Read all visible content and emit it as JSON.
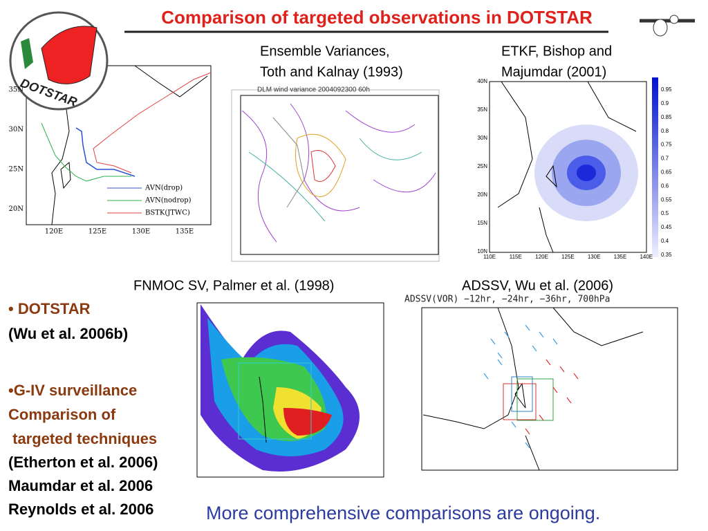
{
  "title": "Comparison of targeted observations in DOTSTAR",
  "logo": "DOTSTAR",
  "track_map": {
    "yticks": [
      "35N",
      "30N",
      "25N",
      "20N"
    ],
    "xticks": [
      "120E",
      "125E",
      "130E",
      "135E"
    ],
    "legend": [
      "AVN(drop)",
      "AVN(nodrop)",
      "BSTK(JTWC)"
    ]
  },
  "panels": [
    {
      "caption": [
        "Ensemble Variances,",
        "Toth and Kalnay (1993)"
      ],
      "plot_title": "DLM wind variance 2004092300 60h"
    },
    {
      "caption": [
        "ETKF, Bishop and",
        "Majumdar (2001)"
      ],
      "yticks": [
        "40N",
        "35N",
        "30N",
        "25N",
        "20N",
        "15N",
        "10N"
      ],
      "xticks": [
        "110E",
        "115E",
        "120E",
        "125E",
        "130E",
        "135E",
        "140E"
      ],
      "colorbar": [
        "0.95",
        "0.9",
        "0.85",
        "0.8",
        "0.75",
        "0.7",
        "0.65",
        "0.6",
        "0.55",
        "0.5",
        "0.45",
        "0.4",
        "0.35"
      ]
    },
    {
      "caption": [
        "FNMOC SV, Palmer et al. (1998)"
      ]
    },
    {
      "caption": [
        "ADSSV, Wu et al. (2006)"
      ],
      "plot_title": "ADSSV(VOR) −12hr, −24hr, −36hr, 700hPa"
    }
  ],
  "bullets": [
    {
      "text": "• DOTSTAR",
      "color": "#8b3a0f"
    },
    {
      "text": "(Wu et al. 2006b)",
      "color": "#000000"
    },
    {
      "text": "•G-IV surveillance",
      "color": "#8b3a0f"
    },
    {
      "text": "Comparison of",
      "color": "#8b3a0f"
    },
    {
      "text": " targeted techniques",
      "color": "#8b3a0f"
    },
    {
      "text": "(Etherton et al. 2006)",
      "color": "#000000"
    },
    {
      "text": "Maumdar et al. 2006",
      "color": "#000000"
    },
    {
      "text": "Reynolds et al. 2006",
      "color": "#000000"
    }
  ],
  "footer": "More comprehensive comparisons are ongoing."
}
